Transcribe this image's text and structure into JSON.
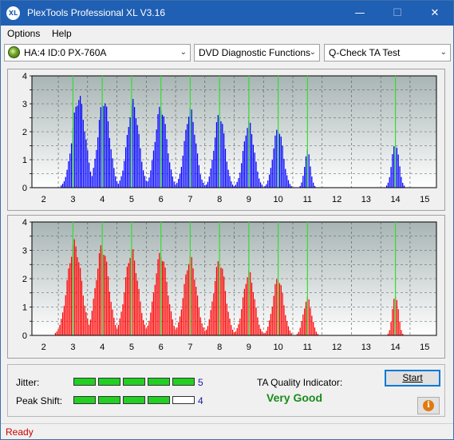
{
  "window": {
    "title": "PlexTools Professional XL V3.16",
    "icon_label": "XL",
    "minimize": "—",
    "maximize": "☐",
    "close": "✕"
  },
  "menu": {
    "items": [
      {
        "label": "Options"
      },
      {
        "label": "Help"
      }
    ]
  },
  "toolbar": {
    "drive": "HA:4 ID:0  PX-760A",
    "function": "DVD Diagnostic Functions",
    "test": "Q-Check TA Test",
    "chevron": "⌄"
  },
  "chart_data": [
    {
      "type": "bar",
      "name": "top-chart",
      "color": "#0000ff",
      "x_ticks": [
        "2",
        "3",
        "4",
        "5",
        "6",
        "7",
        "8",
        "9",
        "10",
        "11",
        "12",
        "13",
        "14",
        "15"
      ],
      "y_ticks": [
        "0",
        "0.5",
        "1",
        "1.5",
        "2",
        "2.5",
        "3",
        "3.5",
        "4"
      ],
      "xlim": [
        1.6,
        15.4
      ],
      "ylim": [
        0,
        4
      ],
      "markers": [
        3,
        4,
        5,
        6,
        7,
        8,
        9,
        10,
        11,
        14
      ],
      "peaks": [
        {
          "center": 3.2,
          "height": 3.2,
          "width": 0.22
        },
        {
          "center": 4.05,
          "height": 3.1,
          "width": 0.2
        },
        {
          "center": 5.05,
          "height": 3.0,
          "width": 0.2
        },
        {
          "center": 6.0,
          "height": 2.85,
          "width": 0.2
        },
        {
          "center": 7.0,
          "height": 2.75,
          "width": 0.19
        },
        {
          "center": 8.0,
          "height": 2.6,
          "width": 0.18
        },
        {
          "center": 9.0,
          "height": 2.3,
          "width": 0.18
        },
        {
          "center": 10.0,
          "height": 2.1,
          "width": 0.17
        },
        {
          "center": 11.0,
          "height": 1.3,
          "width": 0.1
        },
        {
          "center": 14.0,
          "height": 1.6,
          "width": 0.12
        }
      ]
    },
    {
      "type": "bar",
      "name": "bottom-chart",
      "color": "#ff0000",
      "x_ticks": [
        "2",
        "3",
        "4",
        "5",
        "6",
        "7",
        "8",
        "9",
        "10",
        "11",
        "12",
        "13",
        "14",
        "15"
      ],
      "y_ticks": [
        "0",
        "0.5",
        "1",
        "1.5",
        "2",
        "2.5",
        "3",
        "3.5",
        "4"
      ],
      "xlim": [
        1.6,
        15.4
      ],
      "ylim": [
        0,
        4
      ],
      "markers": [
        3,
        4,
        5,
        6,
        7,
        8,
        9,
        10,
        11,
        14
      ],
      "peaks": [
        {
          "center": 3.05,
          "height": 3.2,
          "width": 0.24
        },
        {
          "center": 4.0,
          "height": 3.1,
          "width": 0.22
        },
        {
          "center": 5.0,
          "height": 2.95,
          "width": 0.22
        },
        {
          "center": 6.0,
          "height": 2.85,
          "width": 0.22
        },
        {
          "center": 7.0,
          "height": 2.7,
          "width": 0.21
        },
        {
          "center": 8.0,
          "height": 2.6,
          "width": 0.2
        },
        {
          "center": 9.0,
          "height": 2.2,
          "width": 0.19
        },
        {
          "center": 10.0,
          "height": 2.0,
          "width": 0.18
        },
        {
          "center": 11.0,
          "height": 1.3,
          "width": 0.14
        },
        {
          "center": 14.0,
          "height": 1.45,
          "width": 0.1
        }
      ]
    }
  ],
  "quality": {
    "jitter_label": "Jitter:",
    "jitter_value": "5",
    "jitter_level": 5,
    "peak_shift_label": "Peak Shift:",
    "peak_shift_value": "4",
    "peak_shift_level": 4,
    "ta_label": "TA Quality Indicator:",
    "ta_value": "Very Good",
    "ta_color": "#1a8c1a",
    "start_label": "Start",
    "info_icon": "i"
  },
  "status": {
    "text": "Ready",
    "color": "#cc0000"
  }
}
